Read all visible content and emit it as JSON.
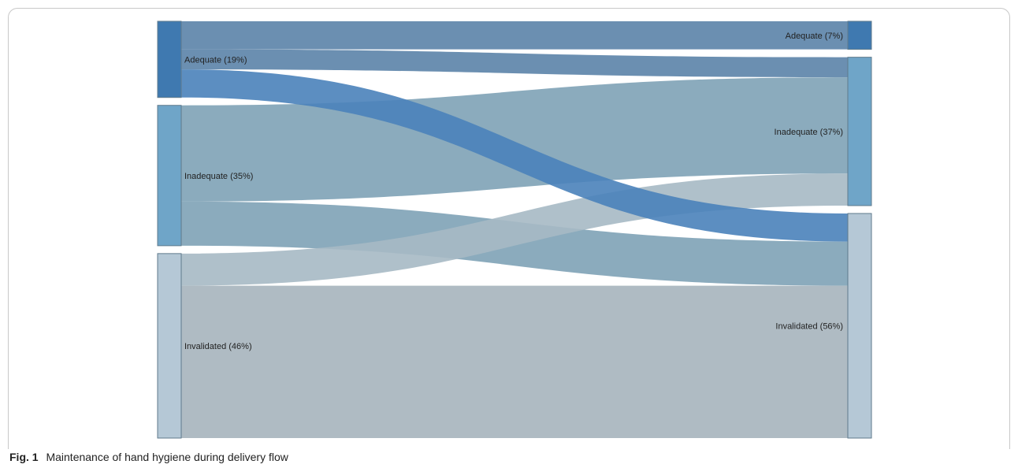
{
  "chart_data": {
    "type": "sankey",
    "title": "",
    "left_nodes": [
      {
        "id": "L_adequate",
        "label": "Adequate (19%)",
        "value": 19,
        "color": "#3f79b0"
      },
      {
        "id": "L_inadequate",
        "label": "Inadequate (35%)",
        "value": 35,
        "color": "#6fa5c8"
      },
      {
        "id": "L_invalidated",
        "label": "Invalidated (46%)",
        "value": 46,
        "color": "#b5c8d6"
      }
    ],
    "right_nodes": [
      {
        "id": "R_adequate",
        "label": "Adequate (7%)",
        "value": 7,
        "color": "#3f79b0"
      },
      {
        "id": "R_inadequate",
        "label": "Inadequate (37%)",
        "value": 37,
        "color": "#6fa5c8"
      },
      {
        "id": "R_invalidated",
        "label": "Invalidated (56%)",
        "value": 56,
        "color": "#b5c8d6"
      }
    ],
    "flows": [
      {
        "source": "L_adequate",
        "target": "R_adequate",
        "value": 7,
        "color": "#5b83a8"
      },
      {
        "source": "L_adequate",
        "target": "R_inadequate",
        "value": 5,
        "color": "#5b83a8"
      },
      {
        "source": "L_adequate",
        "target": "R_invalidated",
        "value": 7,
        "color": "#4a82ba"
      },
      {
        "source": "L_inadequate",
        "target": "R_inadequate",
        "value": 24,
        "color": "#7ea2b6"
      },
      {
        "source": "L_inadequate",
        "target": "R_invalidated",
        "value": 11,
        "color": "#7ea2b6"
      },
      {
        "source": "L_invalidated",
        "target": "R_inadequate",
        "value": 8,
        "color": "#a6b9c4"
      },
      {
        "source": "L_invalidated",
        "target": "R_invalidated",
        "value": 38,
        "color": "#a6b4bd"
      }
    ]
  },
  "caption": {
    "label": "Fig. 1",
    "text": "Maintenance of hand hygiene during delivery flow"
  }
}
